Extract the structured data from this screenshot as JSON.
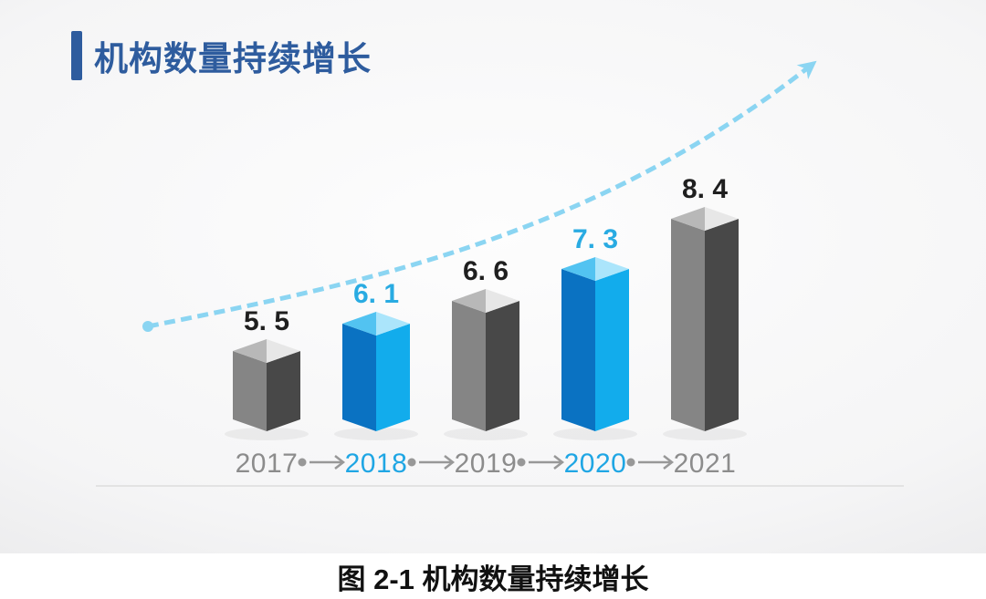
{
  "header": {
    "title": "机构数量持续增长"
  },
  "figure_caption": "图 2-1 机构数量持续增长",
  "colors": {
    "title_text": "#2E5C9E",
    "accent_bar": "#2E5C9E",
    "caption_text": "#111111",
    "slide_bg_center": "#FDFDFD",
    "slide_bg_mid": "#F5F5F6",
    "slide_bg_edge": "#E0E0E2",
    "trend_curve": "#8BD5F2",
    "connector": "#989898",
    "divider_line": "#E3E3E3",
    "year_default": "#8C8C8C",
    "year_highlight": "#1FA6E4",
    "value_default": "#1F1F1F",
    "value_highlight": "#29ABE2",
    "bar_shadow": "rgba(0,0,0,0.05)",
    "gray_bar": {
      "left_face": "#858585",
      "right_face": "#484848",
      "top_left": "#B8B8B8",
      "top_right": "#E7E7E7"
    },
    "blue_bar": {
      "left_face": "#0A72C2",
      "right_face": "#12ACEC",
      "top_left": "#52C3F1",
      "top_right": "#ABE5FB"
    }
  },
  "chart_data": {
    "type": "bar",
    "title": "机构数量持续增长",
    "categories": [
      "2017",
      "2018",
      "2019",
      "2020",
      "2021"
    ],
    "values": [
      5.5,
      6.1,
      6.6,
      7.3,
      8.4
    ],
    "value_labels": [
      "5. 5",
      "6. 1",
      "6. 6",
      "7. 3",
      "8. 4"
    ],
    "highlighted": [
      false,
      true,
      false,
      true,
      false
    ],
    "xlabel": "",
    "ylabel": "",
    "legend": false,
    "grid": false,
    "style": "3d-column infographic, highlighted years in blue, others gray",
    "trend_annotation": "light-blue dashed ascending arrow from lower-left dot to upper-right arrowhead"
  }
}
